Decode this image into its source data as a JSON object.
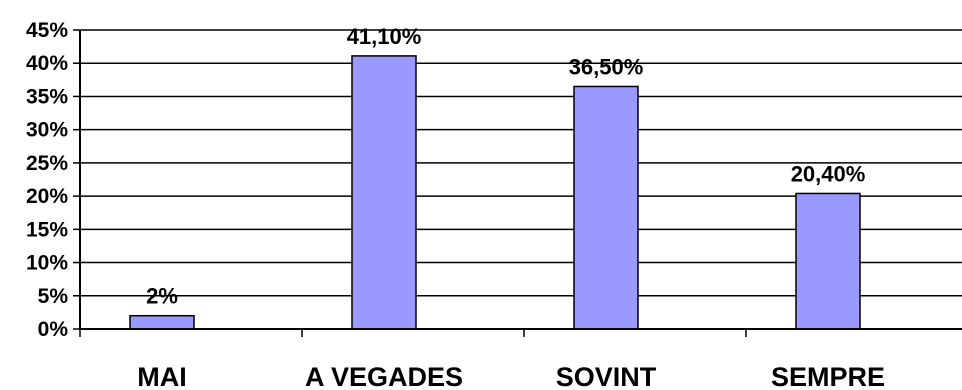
{
  "chart_data": {
    "type": "bar",
    "categories": [
      "MAI",
      "A VEGADES",
      "SOVINT",
      "SEMPRE"
    ],
    "values": [
      2,
      41.1,
      36.5,
      20.4
    ],
    "data_labels": [
      "2%",
      "41,10%",
      "36,50%",
      "20,40%"
    ],
    "title": "",
    "xlabel": "",
    "ylabel": "",
    "ylim": [
      0,
      45
    ],
    "y_ticks": [
      0,
      5,
      10,
      15,
      20,
      25,
      30,
      35,
      40,
      45
    ],
    "y_tick_labels": [
      "0%",
      "5%",
      "10%",
      "15%",
      "20%",
      "25%",
      "30%",
      "35%",
      "40%",
      "45%"
    ],
    "grid": true,
    "legend": "none",
    "bar_color": "#9999FF",
    "bar_edge_color": "#000000",
    "gridline_color": "#000000"
  }
}
